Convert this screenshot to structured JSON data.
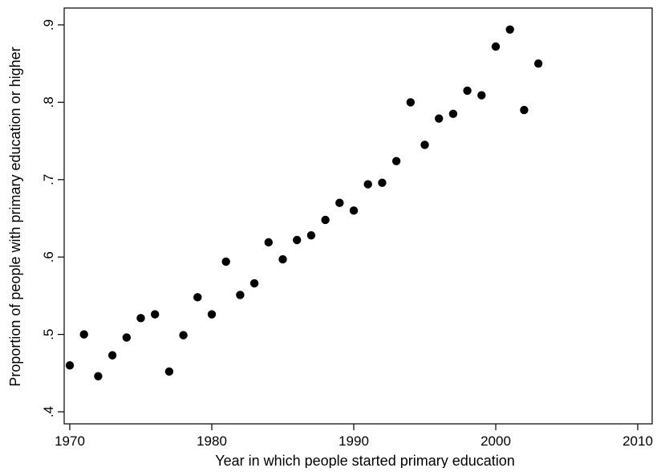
{
  "chart_data": {
    "type": "scatter",
    "title": "",
    "xlabel": "Year in which people started primary education",
    "ylabel": "Proportion of people with primary education or higher",
    "xlim": [
      1970,
      2010
    ],
    "ylim": [
      0.4,
      0.9
    ],
    "x_ticks": [
      1970,
      1980,
      1990,
      2000,
      2010
    ],
    "x_tick_labels": [
      "1970",
      "1980",
      "1990",
      "2000",
      "2010"
    ],
    "y_ticks": [
      0.4,
      0.5,
      0.6,
      0.7,
      0.8,
      0.9
    ],
    "y_tick_labels": [
      ".4",
      ".5",
      ".6",
      ".7",
      ".8",
      ".9"
    ],
    "grid": false,
    "legend": "none",
    "marker_color": "#000000",
    "points": [
      {
        "x": 1970,
        "y": 0.46
      },
      {
        "x": 1971,
        "y": 0.5
      },
      {
        "x": 1972,
        "y": 0.446
      },
      {
        "x": 1973,
        "y": 0.473
      },
      {
        "x": 1974,
        "y": 0.496
      },
      {
        "x": 1975,
        "y": 0.521
      },
      {
        "x": 1976,
        "y": 0.526
      },
      {
        "x": 1977,
        "y": 0.452
      },
      {
        "x": 1978,
        "y": 0.499
      },
      {
        "x": 1979,
        "y": 0.548
      },
      {
        "x": 1980,
        "y": 0.526
      },
      {
        "x": 1981,
        "y": 0.594
      },
      {
        "x": 1982,
        "y": 0.551
      },
      {
        "x": 1983,
        "y": 0.566
      },
      {
        "x": 1984,
        "y": 0.619
      },
      {
        "x": 1985,
        "y": 0.597
      },
      {
        "x": 1986,
        "y": 0.622
      },
      {
        "x": 1987,
        "y": 0.628
      },
      {
        "x": 1988,
        "y": 0.648
      },
      {
        "x": 1989,
        "y": 0.67
      },
      {
        "x": 1990,
        "y": 0.66
      },
      {
        "x": 1991,
        "y": 0.694
      },
      {
        "x": 1992,
        "y": 0.696
      },
      {
        "x": 1993,
        "y": 0.724
      },
      {
        "x": 1994,
        "y": 0.8
      },
      {
        "x": 1995,
        "y": 0.745
      },
      {
        "x": 1996,
        "y": 0.779
      },
      {
        "x": 1997,
        "y": 0.785
      },
      {
        "x": 1998,
        "y": 0.815
      },
      {
        "x": 1999,
        "y": 0.809
      },
      {
        "x": 2000,
        "y": 0.872
      },
      {
        "x": 2001,
        "y": 0.894
      },
      {
        "x": 2002,
        "y": 0.79
      },
      {
        "x": 2003,
        "y": 0.85
      }
    ]
  }
}
